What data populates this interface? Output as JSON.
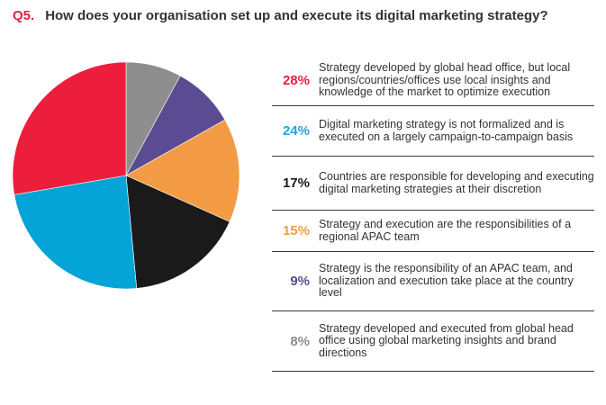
{
  "question": {
    "number": "Q5.",
    "title": "How does your organisation set up and execute its digital marketing strategy?"
  },
  "chart_data": {
    "type": "pie",
    "title": "How does your organisation set up and execute its digital marketing strategy?",
    "slices": [
      {
        "label": "Strategy developed by global head office, but local regions/countries/offices use local insights and knowledge of the market to optimize execution",
        "value": 28,
        "pct_label": "28%",
        "color": "#ec1e3b",
        "label_color": "#e4203f"
      },
      {
        "label": "Digital marketing strategy is not formalized and is executed on a largely campaign-to-campaign basis",
        "value": 24,
        "pct_label": "24%",
        "color": "#05a4d6",
        "label_color": "#1fa5d6"
      },
      {
        "label": "Countries are responsible for developing and executing digital marketing strategies at their discretion",
        "value": 17,
        "pct_label": "17%",
        "color": "#1b1a1a",
        "label_color": "#1b1a1a"
      },
      {
        "label": "Strategy and execution are the responsibilities of a regional APAC team",
        "value": 15,
        "pct_label": "15%",
        "color": "#f39c45",
        "label_color": "#f39c45"
      },
      {
        "label": "Strategy is the responsibility of an APAC team, and localization and execution take place at the country level",
        "value": 9,
        "pct_label": "9%",
        "color": "#5b4b93",
        "label_color": "#5b4b93"
      },
      {
        "label": "Strategy developed and executed from global head office using global marketing insights and brand directions",
        "value": 8,
        "pct_label": "8%",
        "color": "#8e8e8e",
        "label_color": "#8e8e8e"
      }
    ]
  },
  "legend": [
    {
      "pct": "28%",
      "text": "Strategy developed by global head office, but local regions/countries/offices use local insights and knowledge of the market to optimize execution"
    },
    {
      "pct": "24%",
      "text": "Digital marketing strategy is not formalized and is executed on a largely campaign-to-campaign basis"
    },
    {
      "pct": "17%",
      "text": "Countries are responsible for developing and executing digital marketing strategies at their discretion"
    },
    {
      "pct": "15%",
      "text": "Strategy and execution are the responsibilities of a regional APAC team"
    },
    {
      "pct": "9%",
      "text": "Strategy is the responsibility of an APAC team, and localization and execution take place at the country level"
    },
    {
      "pct": "8%",
      "text": "Strategy developed and executed from global head office using global marketing insights and brand directions"
    }
  ]
}
